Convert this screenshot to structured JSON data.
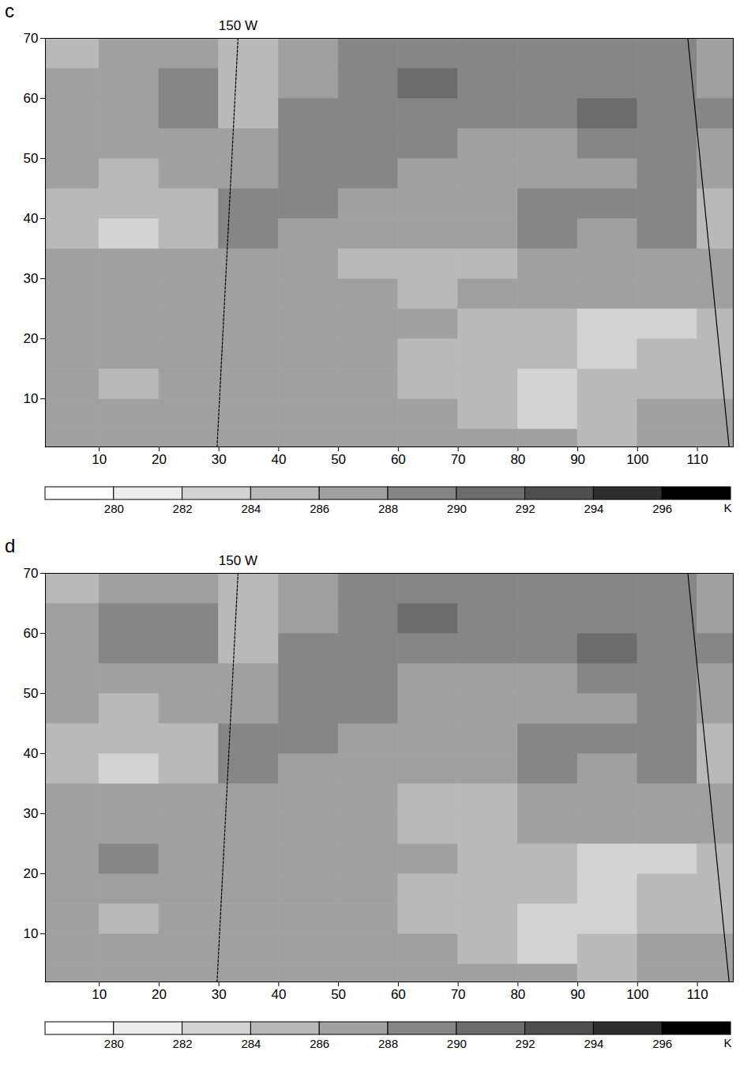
{
  "chart_data": [
    {
      "type": "heatmap",
      "panel": "c",
      "xlim": [
        1,
        116
      ],
      "ylim": [
        2,
        70
      ],
      "xticks": [
        10,
        20,
        30,
        40,
        50,
        60,
        70,
        80,
        90,
        100,
        110
      ],
      "yticks": [
        10,
        20,
        30,
        40,
        50,
        60,
        70
      ],
      "x_edges": [
        1,
        10,
        20,
        30,
        40,
        50,
        60,
        70,
        80,
        90,
        100,
        110,
        116
      ],
      "y_edges": [
        2,
        5,
        10,
        15,
        20,
        25,
        30,
        35,
        40,
        45,
        50,
        55,
        60,
        65,
        70
      ],
      "cells": [
        [
          287,
          287,
          287,
          287,
          287,
          287,
          287,
          287,
          287,
          285,
          287,
          287
        ],
        [
          287,
          287,
          287,
          287,
          287,
          287,
          287,
          285,
          283,
          285,
          287,
          287
        ],
        [
          287,
          285,
          287,
          287,
          287,
          287,
          285,
          285,
          283,
          285,
          285,
          285
        ],
        [
          287,
          287,
          287,
          287,
          287,
          287,
          285,
          285,
          285,
          283,
          285,
          285
        ],
        [
          287,
          287,
          287,
          287,
          287,
          287,
          287,
          285,
          285,
          283,
          283,
          285
        ],
        [
          287,
          287,
          287,
          287,
          287,
          287,
          285,
          287,
          287,
          287,
          287,
          287
        ],
        [
          287,
          287,
          287,
          287,
          287,
          285,
          285,
          285,
          287,
          287,
          287,
          287
        ],
        [
          285,
          283,
          285,
          289,
          287,
          287,
          287,
          287,
          289,
          287,
          289,
          285
        ],
        [
          285,
          285,
          285,
          289,
          289,
          287,
          287,
          287,
          289,
          289,
          289,
          285
        ],
        [
          287,
          285,
          287,
          287,
          289,
          289,
          287,
          287,
          287,
          287,
          289,
          287
        ],
        [
          287,
          287,
          287,
          287,
          289,
          289,
          289,
          287,
          287,
          289,
          289,
          287
        ],
        [
          287,
          287,
          289,
          285,
          289,
          289,
          289,
          289,
          289,
          291,
          289,
          289
        ],
        [
          287,
          287,
          289,
          285,
          287,
          289,
          291,
          289,
          289,
          289,
          289,
          287
        ],
        [
          285,
          287,
          287,
          285,
          287,
          289,
          289,
          289,
          289,
          289,
          289,
          287
        ]
      ],
      "lines": [
        {
          "label": "150 W",
          "x": [
            29.7,
            33.2
          ],
          "y": [
            2,
            70
          ],
          "line_style": "dashed"
        },
        {
          "x": [
            115.3,
            108.4
          ],
          "y": [
            2,
            70
          ],
          "line_style": "solid"
        }
      ],
      "colorbar": {
        "range": [
          278,
          298
        ],
        "ticks": [
          280,
          282,
          284,
          286,
          288,
          290,
          292,
          294,
          296
        ],
        "unit": "K",
        "colors": [
          "#ffffff",
          "#ececec",
          "#d3d3d3",
          "#b9b9b9",
          "#a0a0a0",
          "#868686",
          "#6c6c6c",
          "#4f4f4f",
          "#2e2e2e",
          "#000000"
        ]
      }
    },
    {
      "type": "heatmap",
      "panel": "d",
      "xlim": [
        1,
        116
      ],
      "ylim": [
        2,
        70
      ],
      "xticks": [
        10,
        20,
        30,
        40,
        50,
        60,
        70,
        80,
        90,
        100,
        110
      ],
      "yticks": [
        10,
        20,
        30,
        40,
        50,
        60,
        70
      ],
      "x_edges": [
        1,
        10,
        20,
        30,
        40,
        50,
        60,
        70,
        80,
        90,
        100,
        110,
        116
      ],
      "y_edges": [
        2,
        5,
        10,
        15,
        20,
        25,
        30,
        35,
        40,
        45,
        50,
        55,
        60,
        65,
        70
      ],
      "cells": [
        [
          287,
          287,
          287,
          287,
          287,
          287,
          287,
          287,
          287,
          285,
          287,
          287
        ],
        [
          287,
          287,
          287,
          287,
          287,
          287,
          287,
          285,
          283,
          285,
          287,
          287
        ],
        [
          287,
          285,
          287,
          287,
          287,
          287,
          285,
          285,
          283,
          283,
          285,
          285
        ],
        [
          287,
          287,
          287,
          287,
          287,
          287,
          285,
          285,
          285,
          283,
          285,
          285
        ],
        [
          287,
          289,
          287,
          287,
          287,
          287,
          287,
          285,
          285,
          283,
          283,
          285
        ],
        [
          287,
          287,
          287,
          287,
          287,
          287,
          285,
          285,
          287,
          287,
          287,
          287
        ],
        [
          287,
          287,
          287,
          287,
          287,
          287,
          285,
          285,
          287,
          287,
          287,
          287
        ],
        [
          285,
          283,
          285,
          289,
          287,
          287,
          287,
          287,
          289,
          287,
          289,
          285
        ],
        [
          285,
          285,
          285,
          289,
          289,
          287,
          287,
          287,
          289,
          289,
          289,
          285
        ],
        [
          287,
          285,
          287,
          287,
          289,
          289,
          287,
          287,
          287,
          287,
          289,
          287
        ],
        [
          287,
          287,
          287,
          287,
          289,
          289,
          287,
          287,
          287,
          289,
          289,
          287
        ],
        [
          287,
          289,
          289,
          285,
          289,
          289,
          289,
          289,
          289,
          291,
          289,
          289
        ],
        [
          287,
          289,
          289,
          285,
          287,
          289,
          291,
          289,
          289,
          289,
          289,
          287
        ],
        [
          285,
          287,
          287,
          285,
          287,
          289,
          289,
          289,
          289,
          289,
          289,
          287
        ]
      ],
      "lines": [
        {
          "label": "150 W",
          "x": [
            29.7,
            33.2
          ],
          "y": [
            2,
            70
          ],
          "line_style": "dashed"
        },
        {
          "x": [
            115.3,
            108.4
          ],
          "y": [
            2,
            70
          ],
          "line_style": "solid"
        }
      ],
      "colorbar": {
        "range": [
          278,
          298
        ],
        "ticks": [
          280,
          282,
          284,
          286,
          288,
          290,
          292,
          294,
          296
        ],
        "unit": "K",
        "colors": [
          "#ffffff",
          "#ececec",
          "#d3d3d3",
          "#b9b9b9",
          "#a0a0a0",
          "#868686",
          "#6c6c6c",
          "#4f4f4f",
          "#2e2e2e",
          "#000000"
        ]
      }
    }
  ]
}
